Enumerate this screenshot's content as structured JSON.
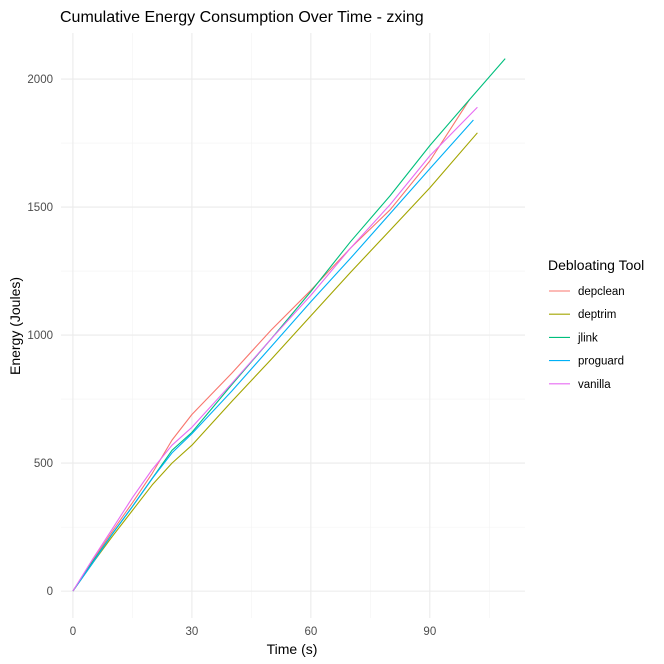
{
  "chart_data": {
    "type": "line",
    "title": "Cumulative Energy Consumption Over Time - zxing",
    "xlabel": "Time (s)",
    "ylabel": "Energy (Joules)",
    "xlim": [
      -3,
      114
    ],
    "ylim": [
      -105,
      2180
    ],
    "x_ticks": [
      0,
      30,
      60,
      90
    ],
    "y_ticks": [
      0,
      500,
      1000,
      1500,
      2000
    ],
    "grid": true,
    "legend": {
      "title": "Debloating Tool",
      "position": "right"
    },
    "series": [
      {
        "name": "depclean",
        "color": "#F8766D",
        "x": [
          0,
          5,
          10,
          15,
          20,
          25,
          30,
          40,
          50,
          60,
          70,
          80,
          90,
          100
        ],
        "y": [
          0,
          120,
          235,
          345,
          460,
          590,
          690,
          850,
          1020,
          1175,
          1340,
          1490,
          1680,
          1920
        ]
      },
      {
        "name": "deptrim",
        "color": "#A3A500",
        "x": [
          0,
          5,
          10,
          15,
          20,
          25,
          30,
          40,
          50,
          60,
          70,
          80,
          90,
          102
        ],
        "y": [
          0,
          110,
          215,
          315,
          415,
          500,
          570,
          740,
          905,
          1075,
          1245,
          1410,
          1575,
          1790
        ]
      },
      {
        "name": "jlink",
        "color": "#00BF7D",
        "x": [
          0,
          5,
          10,
          15,
          20,
          25,
          30,
          40,
          50,
          60,
          70,
          80,
          90,
          100,
          109
        ],
        "y": [
          0,
          115,
          225,
          330,
          440,
          550,
          620,
          805,
          985,
          1170,
          1365,
          1545,
          1740,
          1920,
          2080
        ]
      },
      {
        "name": "proguard",
        "color": "#00B0F6",
        "x": [
          0,
          5,
          10,
          15,
          20,
          25,
          30,
          40,
          50,
          60,
          70,
          80,
          90,
          101
        ],
        "y": [
          0,
          110,
          225,
          330,
          440,
          540,
          615,
          780,
          955,
          1130,
          1300,
          1475,
          1650,
          1840
        ]
      },
      {
        "name": "vanilla",
        "color": "#E76BF3",
        "x": [
          0,
          5,
          10,
          15,
          20,
          25,
          30,
          40,
          50,
          60,
          70,
          80,
          90,
          102
        ],
        "y": [
          0,
          125,
          245,
          365,
          475,
          570,
          640,
          810,
          985,
          1155,
          1340,
          1510,
          1700,
          1890
        ]
      }
    ]
  }
}
